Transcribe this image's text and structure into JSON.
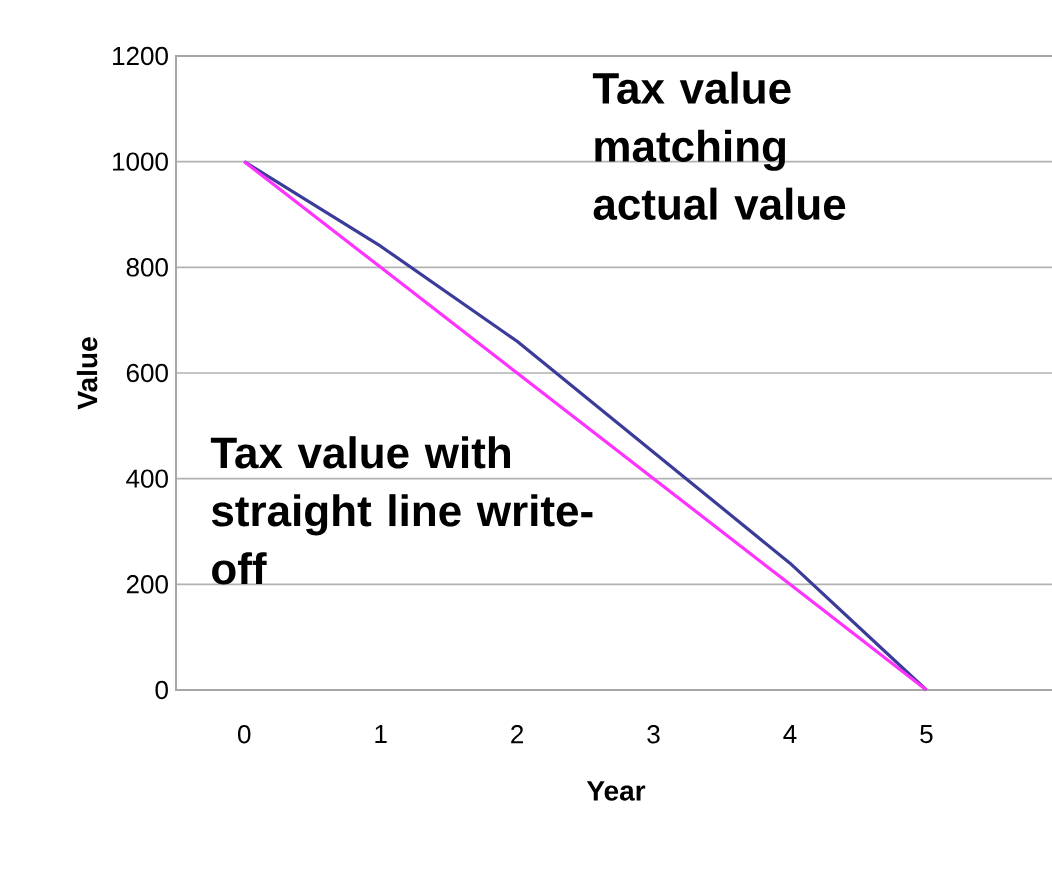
{
  "chart_data": {
    "type": "line",
    "xlabel": "Year",
    "ylabel": "Value",
    "categories": [
      "0",
      "1",
      "2",
      "3",
      "4",
      "5"
    ],
    "series": [
      {
        "color": "#3b3b9a",
        "values": [
          1000,
          840,
          660,
          450,
          240,
          0
        ]
      },
      {
        "color": "#ff33ff",
        "values": [
          1000,
          800,
          600,
          400,
          200,
          0
        ]
      }
    ],
    "ylim": [
      0,
      1200
    ],
    "yticks": [
      0,
      200,
      400,
      600,
      800,
      1000,
      1200
    ],
    "grid": "y",
    "marker": "none",
    "line_style": "solid",
    "annotations": [
      "Tax value matching actual value",
      "Tax value with straight line write-off"
    ]
  }
}
